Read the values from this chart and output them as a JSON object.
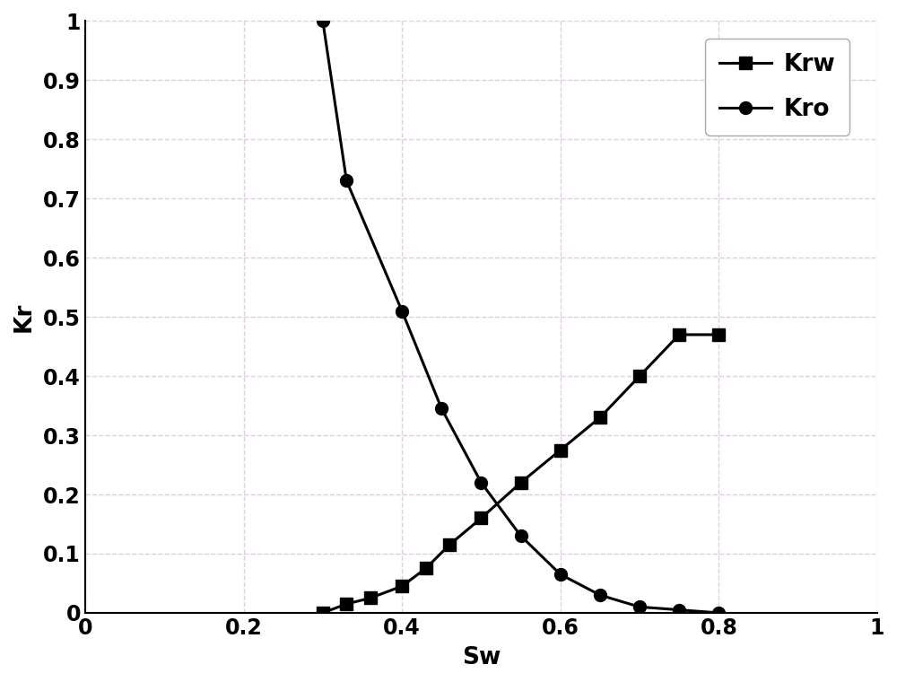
{
  "krw_sw": [
    0.3,
    0.33,
    0.36,
    0.4,
    0.43,
    0.46,
    0.5,
    0.55,
    0.6,
    0.65,
    0.7,
    0.75,
    0.8
  ],
  "krw_kr": [
    0.0,
    0.015,
    0.025,
    0.045,
    0.075,
    0.115,
    0.16,
    0.22,
    0.275,
    0.33,
    0.4,
    0.47,
    0.47
  ],
  "kro_sw": [
    0.3,
    0.33,
    0.4,
    0.45,
    0.5,
    0.55,
    0.6,
    0.65,
    0.7,
    0.75,
    0.8
  ],
  "kro_kr": [
    1.0,
    0.73,
    0.51,
    0.345,
    0.22,
    0.13,
    0.065,
    0.03,
    0.01,
    0.005,
    0.0
  ],
  "line_color": "#000000",
  "krw_marker": "s",
  "kro_marker": "o",
  "marker_size": 10,
  "line_width": 2.2,
  "xlabel": "Sw",
  "ylabel": "Kr",
  "xlim": [
    0,
    1
  ],
  "ylim": [
    0,
    1.0
  ],
  "xticks": [
    0,
    0.2,
    0.4,
    0.6,
    0.8,
    1
  ],
  "yticks": [
    0,
    0.1,
    0.2,
    0.3,
    0.4,
    0.5,
    0.6,
    0.7,
    0.8,
    0.9,
    1.0
  ],
  "xtick_labels": [
    "0",
    "0.2",
    "0.4",
    "0.6",
    "0.8",
    "1"
  ],
  "ytick_labels": [
    "0",
    "0.1",
    "0.2",
    "0.3",
    "0.4",
    "0.5",
    "0.6",
    "0.7",
    "0.8",
    "0.9",
    "1"
  ],
  "grid_color": "#d8b4d8",
  "grid_style": "--",
  "grid_alpha": 0.7,
  "legend_krw": "Krw",
  "legend_kro": "Kro",
  "fontsize_tick": 17,
  "fontsize_label": 19,
  "fontsize_legend": 19,
  "tick_fontweight": "bold",
  "label_fontweight": "bold",
  "legend_fontweight": "bold",
  "background_color": "#ffffff",
  "spine_color": "#000000"
}
